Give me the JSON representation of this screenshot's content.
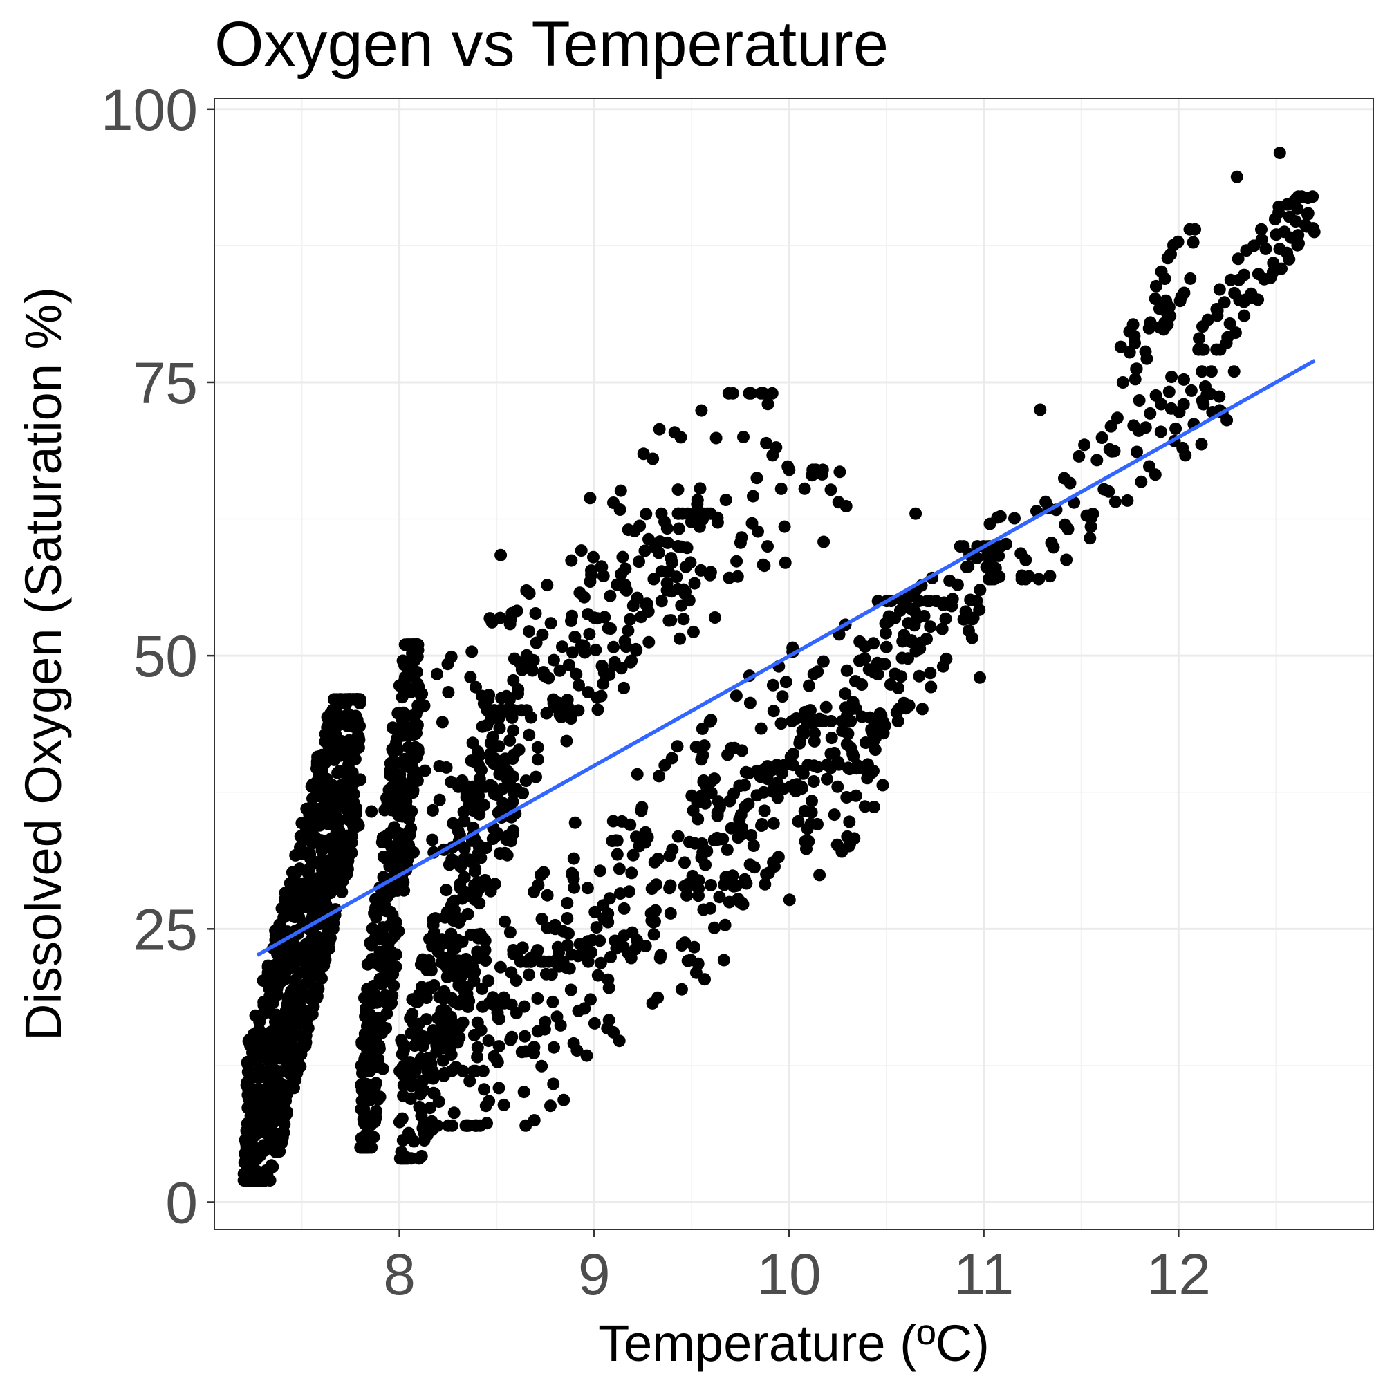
{
  "chart_data": {
    "type": "scatter",
    "title": "Oxygen vs Temperature",
    "xlabel": "Temperature (ºC)",
    "ylabel": "Dissolved Oxygen (Saturation %)",
    "xlim": [
      7.05,
      13.0
    ],
    "ylim": [
      -2.5,
      101
    ],
    "x_ticks": [
      8,
      9,
      10,
      11,
      12
    ],
    "x_tick_labels": [
      "8",
      "9",
      "10",
      "11",
      "12"
    ],
    "y_ticks": [
      0,
      25,
      50,
      75,
      100
    ],
    "y_tick_labels": [
      "0",
      "25",
      "50",
      "75",
      "100"
    ],
    "grid": true,
    "legend": "none",
    "point_color": "#000000",
    "trend_line_color": "#3366ff",
    "trend_line": {
      "x": [
        7.27,
        12.7
      ],
      "y": [
        22.6,
        77.0
      ]
    },
    "point_bands": [
      {
        "x": [
          7.2,
          7.8
        ],
        "y": [
          2,
          46
        ],
        "count": 900
      },
      {
        "x": [
          7.8,
          8.1
        ],
        "y": [
          5,
          51
        ],
        "count": 350
      },
      {
        "x": [
          8.0,
          8.6
        ],
        "y": [
          4,
          45
        ],
        "count": 300
      },
      {
        "x": [
          7.85,
          10.0
        ],
        "y": [
          32,
          74
        ],
        "count": 120
      },
      {
        "x": [
          8.3,
          9.6
        ],
        "y": [
          38,
          63
        ],
        "count": 110
      },
      {
        "x": [
          8.5,
          10.3
        ],
        "y": [
          45,
          67
        ],
        "count": 80
      },
      {
        "x": [
          8.1,
          10.5
        ],
        "y": [
          7,
          44
        ],
        "count": 200
      },
      {
        "x": [
          8.0,
          10.2
        ],
        "y": [
          12,
          40
        ],
        "count": 160
      },
      {
        "x": [
          8.6,
          10.8
        ],
        "y": [
          22,
          55
        ],
        "count": 150
      },
      {
        "x": [
          10.0,
          11.1
        ],
        "y": [
          38,
          60
        ],
        "count": 120
      },
      {
        "x": [
          11.0,
          12.3
        ],
        "y": [
          57,
          76
        ],
        "count": 90
      },
      {
        "x": [
          11.7,
          12.1
        ],
        "y": [
          75,
          89
        ],
        "count": 40
      },
      {
        "x": [
          12.1,
          12.7
        ],
        "y": [
          78,
          92
        ],
        "count": 70
      }
    ],
    "notable_points": [
      {
        "x": 8.52,
        "y": 59.2
      },
      {
        "x": 12.3,
        "y": 93.8
      },
      {
        "x": 12.52,
        "y": 96.0
      },
      {
        "x": 10.65,
        "y": 63.0
      },
      {
        "x": 11.29,
        "y": 72.5
      },
      {
        "x": 10.98,
        "y": 48.0
      },
      {
        "x": 10.56,
        "y": 44.0
      },
      {
        "x": 10.39,
        "y": 36.2
      },
      {
        "x": 10.31,
        "y": 34.8
      },
      {
        "x": 9.45,
        "y": 23.5
      },
      {
        "x": 9.89,
        "y": 60.0
      },
      {
        "x": 11.55,
        "y": 61.8
      }
    ]
  }
}
